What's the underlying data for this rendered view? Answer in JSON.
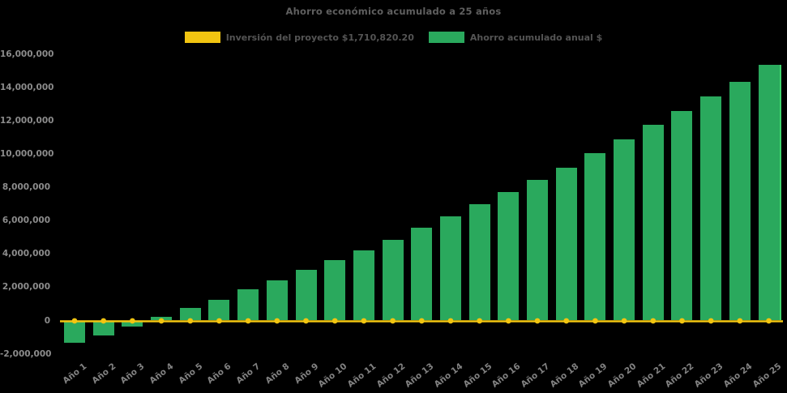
{
  "title": "Ahorro económico acumulado a 25 años",
  "legend": {
    "items": [
      {
        "label": "Inversión del proyecto $1,710,820.20",
        "color": "#f2c511"
      },
      {
        "label": "Ahorro acumulado anual $",
        "color": "#2aa95d"
      }
    ]
  },
  "colors": {
    "background": "#000000",
    "bar": "#2aa95d",
    "bar_edge_highlight": "#3fd46d",
    "line": "#f2c511",
    "marker": "#f2c511",
    "title_text": "#5f5f5f",
    "legend_text": "#545454",
    "axis_text": "#8c8c8c"
  },
  "chart_data": {
    "type": "bar",
    "title": "Ahorro económico acumulado a 25 años",
    "categories": [
      "Año 1",
      "Año 2",
      "Año 3",
      "Año 4",
      "Año 5",
      "Año 6",
      "Año 7",
      "Año 8",
      "Año 9",
      "Año 10",
      "Año 11",
      "Año 12",
      "Año 13",
      "Año 14",
      "Año 15",
      "Año 16",
      "Año 17",
      "Año 18",
      "Año 19",
      "Año 20",
      "Año 21",
      "Año 22",
      "Año 23",
      "Año 24",
      "Año 25"
    ],
    "series": [
      {
        "name": "Inversión del proyecto $1,710,820.20",
        "type": "line",
        "color": "#f2c511",
        "values": [
          0,
          0,
          0,
          0,
          0,
          0,
          0,
          0,
          0,
          0,
          0,
          0,
          0,
          0,
          0,
          0,
          0,
          0,
          0,
          0,
          0,
          0,
          0,
          0,
          0
        ]
      },
      {
        "name": "Ahorro acumulado anual $",
        "type": "bar",
        "color": "#2aa95d",
        "values": [
          -1350000,
          -920000,
          -380000,
          220000,
          750000,
          1250000,
          1850000,
          2420000,
          3020000,
          3630000,
          4220000,
          4850000,
          5550000,
          6240000,
          6970000,
          7700000,
          8420000,
          9170000,
          10030000,
          10880000,
          11730000,
          12580000,
          13440000,
          14350000,
          15350000
        ]
      }
    ],
    "xlabel": "",
    "ylabel": "",
    "ylim": [
      -2000000,
      16000000
    ],
    "yticks": [
      {
        "value": -2000000,
        "label": "-2,000,000"
      },
      {
        "value": 0,
        "label": "0"
      },
      {
        "value": 2000000,
        "label": "2,000,000"
      },
      {
        "value": 4000000,
        "label": "4,000,000"
      },
      {
        "value": 6000000,
        "label": "6,000,000"
      },
      {
        "value": 8000000,
        "label": "8,000,000"
      },
      {
        "value": 10000000,
        "label": "10,000,000"
      },
      {
        "value": 12000000,
        "label": "12,000,000"
      },
      {
        "value": 14000000,
        "label": "14,000,000"
      },
      {
        "value": 16000000,
        "label": "16,000,000"
      }
    ],
    "grid": false,
    "legend_position": "top"
  }
}
